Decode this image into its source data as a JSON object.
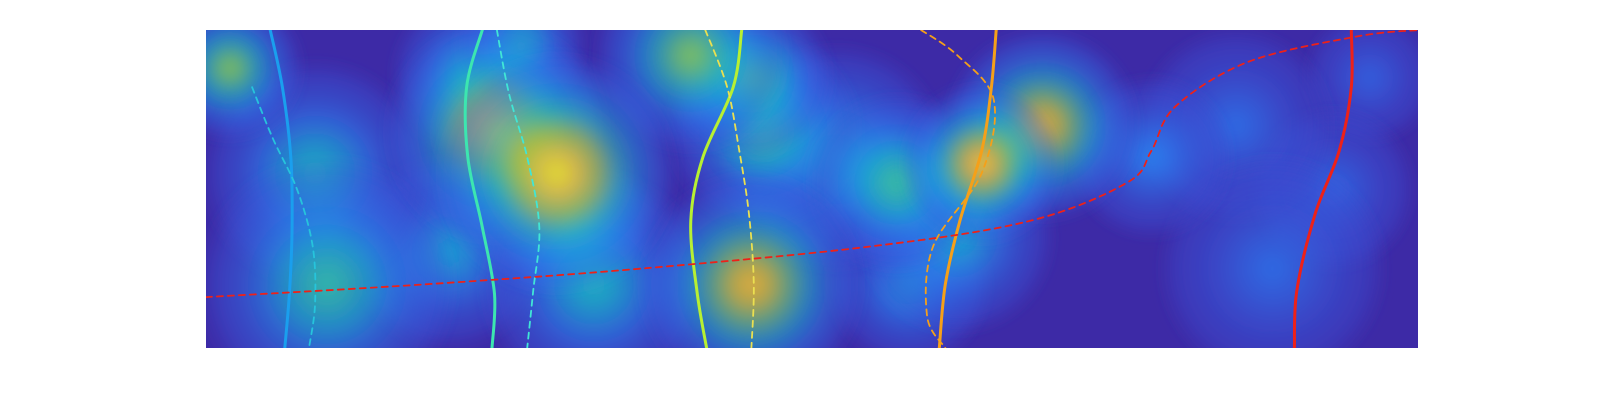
{
  "figure": {
    "background": "#ffffff",
    "plot_background": "#3d2aa6"
  },
  "chart_data": {
    "type": "heatmap",
    "title": "",
    "xlabel": "",
    "ylabel": "",
    "xlim": [
      0,
      1
    ],
    "ylim": [
      0,
      1
    ],
    "grid": false,
    "legend": "none",
    "axes_visible": false,
    "colormap": "parula",
    "colormap_stops": [
      "#3d2aa6",
      "#3a4fd6",
      "#2a7ff2",
      "#16b3d3",
      "#38c7a0",
      "#a6cb3a",
      "#f7b733",
      "#f7f01b"
    ],
    "blobs": [
      {
        "x": 0.02,
        "y": 0.88,
        "s": 0.045,
        "a": 0.55
      },
      {
        "x": 0.09,
        "y": 0.55,
        "s": 0.07,
        "a": 0.35
      },
      {
        "x": 0.1,
        "y": 0.2,
        "s": 0.08,
        "a": 0.42
      },
      {
        "x": 0.2,
        "y": 0.3,
        "s": 0.06,
        "a": 0.28
      },
      {
        "x": 0.22,
        "y": 0.86,
        "s": 0.05,
        "a": 0.35
      },
      {
        "x": 0.24,
        "y": 0.68,
        "s": 0.07,
        "a": 0.78
      },
      {
        "x": 0.29,
        "y": 0.55,
        "s": 0.075,
        "a": 0.85
      },
      {
        "x": 0.26,
        "y": 0.95,
        "s": 0.04,
        "a": 0.35
      },
      {
        "x": 0.32,
        "y": 0.2,
        "s": 0.07,
        "a": 0.35
      },
      {
        "x": 0.3,
        "y": 0.4,
        "s": 0.05,
        "a": 0.3
      },
      {
        "x": 0.4,
        "y": 0.92,
        "s": 0.06,
        "a": 0.55
      },
      {
        "x": 0.45,
        "y": 0.85,
        "s": 0.05,
        "a": 0.5
      },
      {
        "x": 0.46,
        "y": 0.68,
        "s": 0.06,
        "a": 0.45
      },
      {
        "x": 0.45,
        "y": 0.2,
        "s": 0.07,
        "a": 0.72
      },
      {
        "x": 0.52,
        "y": 0.6,
        "s": 0.07,
        "a": 0.3
      },
      {
        "x": 0.57,
        "y": 0.52,
        "s": 0.055,
        "a": 0.45
      },
      {
        "x": 0.64,
        "y": 0.58,
        "s": 0.05,
        "a": 0.78
      },
      {
        "x": 0.69,
        "y": 0.7,
        "s": 0.06,
        "a": 0.72
      },
      {
        "x": 0.62,
        "y": 0.35,
        "s": 0.06,
        "a": 0.3
      },
      {
        "x": 0.58,
        "y": 0.2,
        "s": 0.05,
        "a": 0.25
      },
      {
        "x": 0.78,
        "y": 0.6,
        "s": 0.05,
        "a": 0.18
      },
      {
        "x": 0.85,
        "y": 0.7,
        "s": 0.06,
        "a": 0.12
      },
      {
        "x": 0.88,
        "y": 0.25,
        "s": 0.07,
        "a": 0.12
      },
      {
        "x": 0.93,
        "y": 0.5,
        "s": 0.05,
        "a": 0.1
      },
      {
        "x": 0.96,
        "y": 0.85,
        "s": 0.04,
        "a": 0.08
      }
    ],
    "series": [
      {
        "color": "#1a9fee",
        "style": "solid",
        "x": [
          0.053,
          0.063,
          0.07,
          0.071,
          0.069,
          0.065
        ],
        "y": [
          1.0,
          0.82,
          0.6,
          0.38,
          0.18,
          0.0
        ]
      },
      {
        "color": "#26c4dc",
        "style": "dashed",
        "x": [
          0.038,
          0.055,
          0.075,
          0.088,
          0.09,
          0.085
        ],
        "y": [
          0.82,
          0.66,
          0.5,
          0.32,
          0.14,
          0.0
        ]
      },
      {
        "color": "#3ce6b0",
        "style": "solid",
        "x": [
          0.228,
          0.215,
          0.216,
          0.228,
          0.238,
          0.236
        ],
        "y": [
          1.0,
          0.82,
          0.6,
          0.38,
          0.17,
          0.0
        ]
      },
      {
        "color": "#40e6d6",
        "style": "dashed",
        "x": [
          0.24,
          0.25,
          0.265,
          0.275,
          0.27,
          0.265
        ],
        "y": [
          1.0,
          0.8,
          0.6,
          0.38,
          0.18,
          0.0
        ]
      },
      {
        "color": "#b7f032",
        "style": "solid",
        "x": [
          0.442,
          0.435,
          0.41,
          0.4,
          0.405,
          0.413
        ],
        "y": [
          1.0,
          0.82,
          0.6,
          0.4,
          0.18,
          0.0
        ]
      },
      {
        "color": "#ebe050",
        "style": "dashed",
        "x": [
          0.412,
          0.43,
          0.44,
          0.448,
          0.452,
          0.45
        ],
        "y": [
          1.0,
          0.82,
          0.62,
          0.42,
          0.2,
          0.0
        ]
      },
      {
        "color": "#f5a019",
        "style": "solid",
        "x": [
          0.652,
          0.648,
          0.64,
          0.622,
          0.61,
          0.605
        ],
        "y": [
          1.0,
          0.82,
          0.62,
          0.4,
          0.2,
          0.0
        ]
      },
      {
        "color": "#f5a019",
        "style": "dashed",
        "x": [
          0.59,
          0.62,
          0.65,
          0.64,
          0.6,
          0.595,
          0.61
        ],
        "y": [
          1.0,
          0.92,
          0.78,
          0.55,
          0.32,
          0.1,
          0.0
        ]
      },
      {
        "color": "#ee2118",
        "style": "solid",
        "x": [
          0.945,
          0.945,
          0.935,
          0.915,
          0.9,
          0.898
        ],
        "y": [
          1.0,
          0.82,
          0.62,
          0.42,
          0.18,
          0.0
        ]
      },
      {
        "color": "#ee2118",
        "style": "dashed",
        "x": [
          0.0,
          0.18,
          0.36,
          0.55,
          0.68,
          0.76,
          0.78,
          0.8,
          0.86,
          0.95,
          1.0
        ],
        "y": [
          0.16,
          0.2,
          0.25,
          0.32,
          0.4,
          0.52,
          0.62,
          0.76,
          0.9,
          0.98,
          1.0
        ]
      }
    ]
  }
}
